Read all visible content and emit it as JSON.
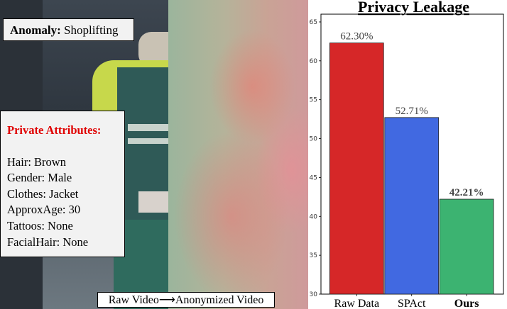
{
  "left_panel": {
    "anomaly_label": "Anomaly:",
    "anomaly_value": "Shoplifting",
    "attributes_title": "Private Attributes:",
    "attributes": [
      "Hair: Brown",
      "Gender: Male",
      "Clothes: Jacket",
      "ApproxAge: 30",
      "Tattoos: None",
      "FacialHair: None"
    ],
    "caption_left": "Raw Video",
    "caption_arrow": "⟶",
    "caption_right": "Anonymized Video"
  },
  "chart_data": {
    "type": "bar",
    "title": "Privacy Leakage",
    "categories": [
      "Raw Data",
      "SPAct",
      "Ours"
    ],
    "values": [
      62.3,
      52.71,
      42.21
    ],
    "data_labels": [
      "62.30%",
      "52.71%",
      "42.21%"
    ],
    "colors": [
      "#d62728",
      "#4169e1",
      "#3cb371"
    ],
    "bold_category": "Ours",
    "ylim": [
      30,
      66
    ],
    "yticks": [
      30,
      35,
      40,
      45,
      50,
      55,
      60,
      65
    ],
    "grid": false
  }
}
